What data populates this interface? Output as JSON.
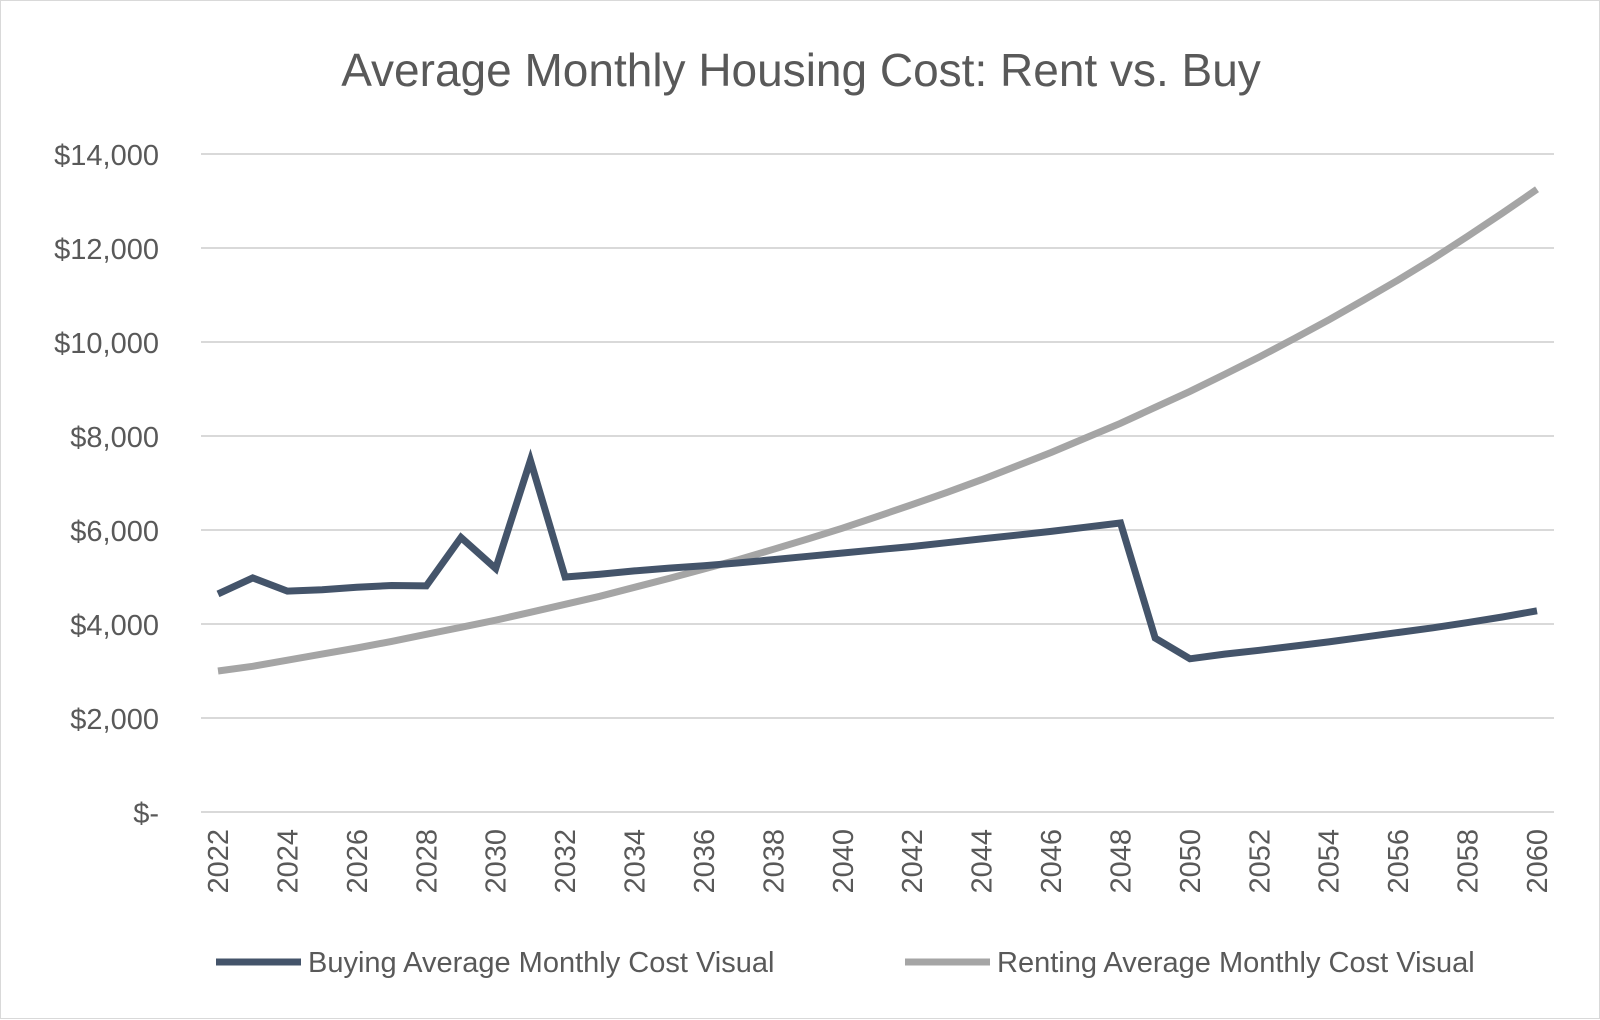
{
  "chart_data": {
    "type": "line",
    "title": "Average Monthly Housing Cost: Rent vs. Buy",
    "xlabel": "",
    "ylabel": "",
    "ylim": [
      0,
      14000
    ],
    "y_ticks": [
      0,
      2000,
      4000,
      6000,
      8000,
      10000,
      12000,
      14000
    ],
    "y_tick_labels": [
      "$-",
      "$2,000",
      "$4,000",
      "$6,000",
      "$8,000",
      "$10,000",
      "$12,000",
      "$14,000"
    ],
    "x_tick_labels": [
      "2022",
      "2024",
      "2026",
      "2028",
      "2030",
      "2032",
      "2034",
      "2036",
      "2038",
      "2040",
      "2042",
      "2044",
      "2046",
      "2048",
      "2050",
      "2052",
      "2054",
      "2056",
      "2058",
      "2060"
    ],
    "grid": true,
    "legend_position": "bottom",
    "x": [
      2022,
      2023,
      2024,
      2025,
      2026,
      2027,
      2028,
      2029,
      2030,
      2031,
      2032,
      2033,
      2034,
      2035,
      2036,
      2037,
      2038,
      2039,
      2040,
      2041,
      2042,
      2043,
      2044,
      2045,
      2046,
      2047,
      2048,
      2049,
      2050,
      2051,
      2052,
      2053,
      2054,
      2055,
      2056,
      2057,
      2058,
      2059,
      2060
    ],
    "series": [
      {
        "name": "Buying Average Monthly Cost Visual",
        "color": "#44546a",
        "values": [
          4640,
          4980,
          4700,
          4730,
          4780,
          4820,
          4810,
          5840,
          5180,
          7480,
          5000,
          5060,
          5130,
          5190,
          5240,
          5300,
          5370,
          5440,
          5510,
          5580,
          5650,
          5730,
          5810,
          5890,
          5970,
          6060,
          6150,
          3700,
          3260,
          3360,
          3440,
          3530,
          3620,
          3720,
          3820,
          3920,
          4030,
          4150,
          4280
        ]
      },
      {
        "name": "Renting Average Monthly Cost Visual",
        "color": "#a5a5a5",
        "values": [
          3000,
          3100,
          3230,
          3360,
          3490,
          3630,
          3780,
          3930,
          4080,
          4250,
          4420,
          4590,
          4780,
          4970,
          5170,
          5370,
          5590,
          5810,
          6040,
          6290,
          6540,
          6800,
          7070,
          7360,
          7650,
          7960,
          8270,
          8610,
          8950,
          9310,
          9680,
          10070,
          10470,
          10890,
          11320,
          11770,
          12250,
          12740,
          13250
        ]
      }
    ]
  }
}
